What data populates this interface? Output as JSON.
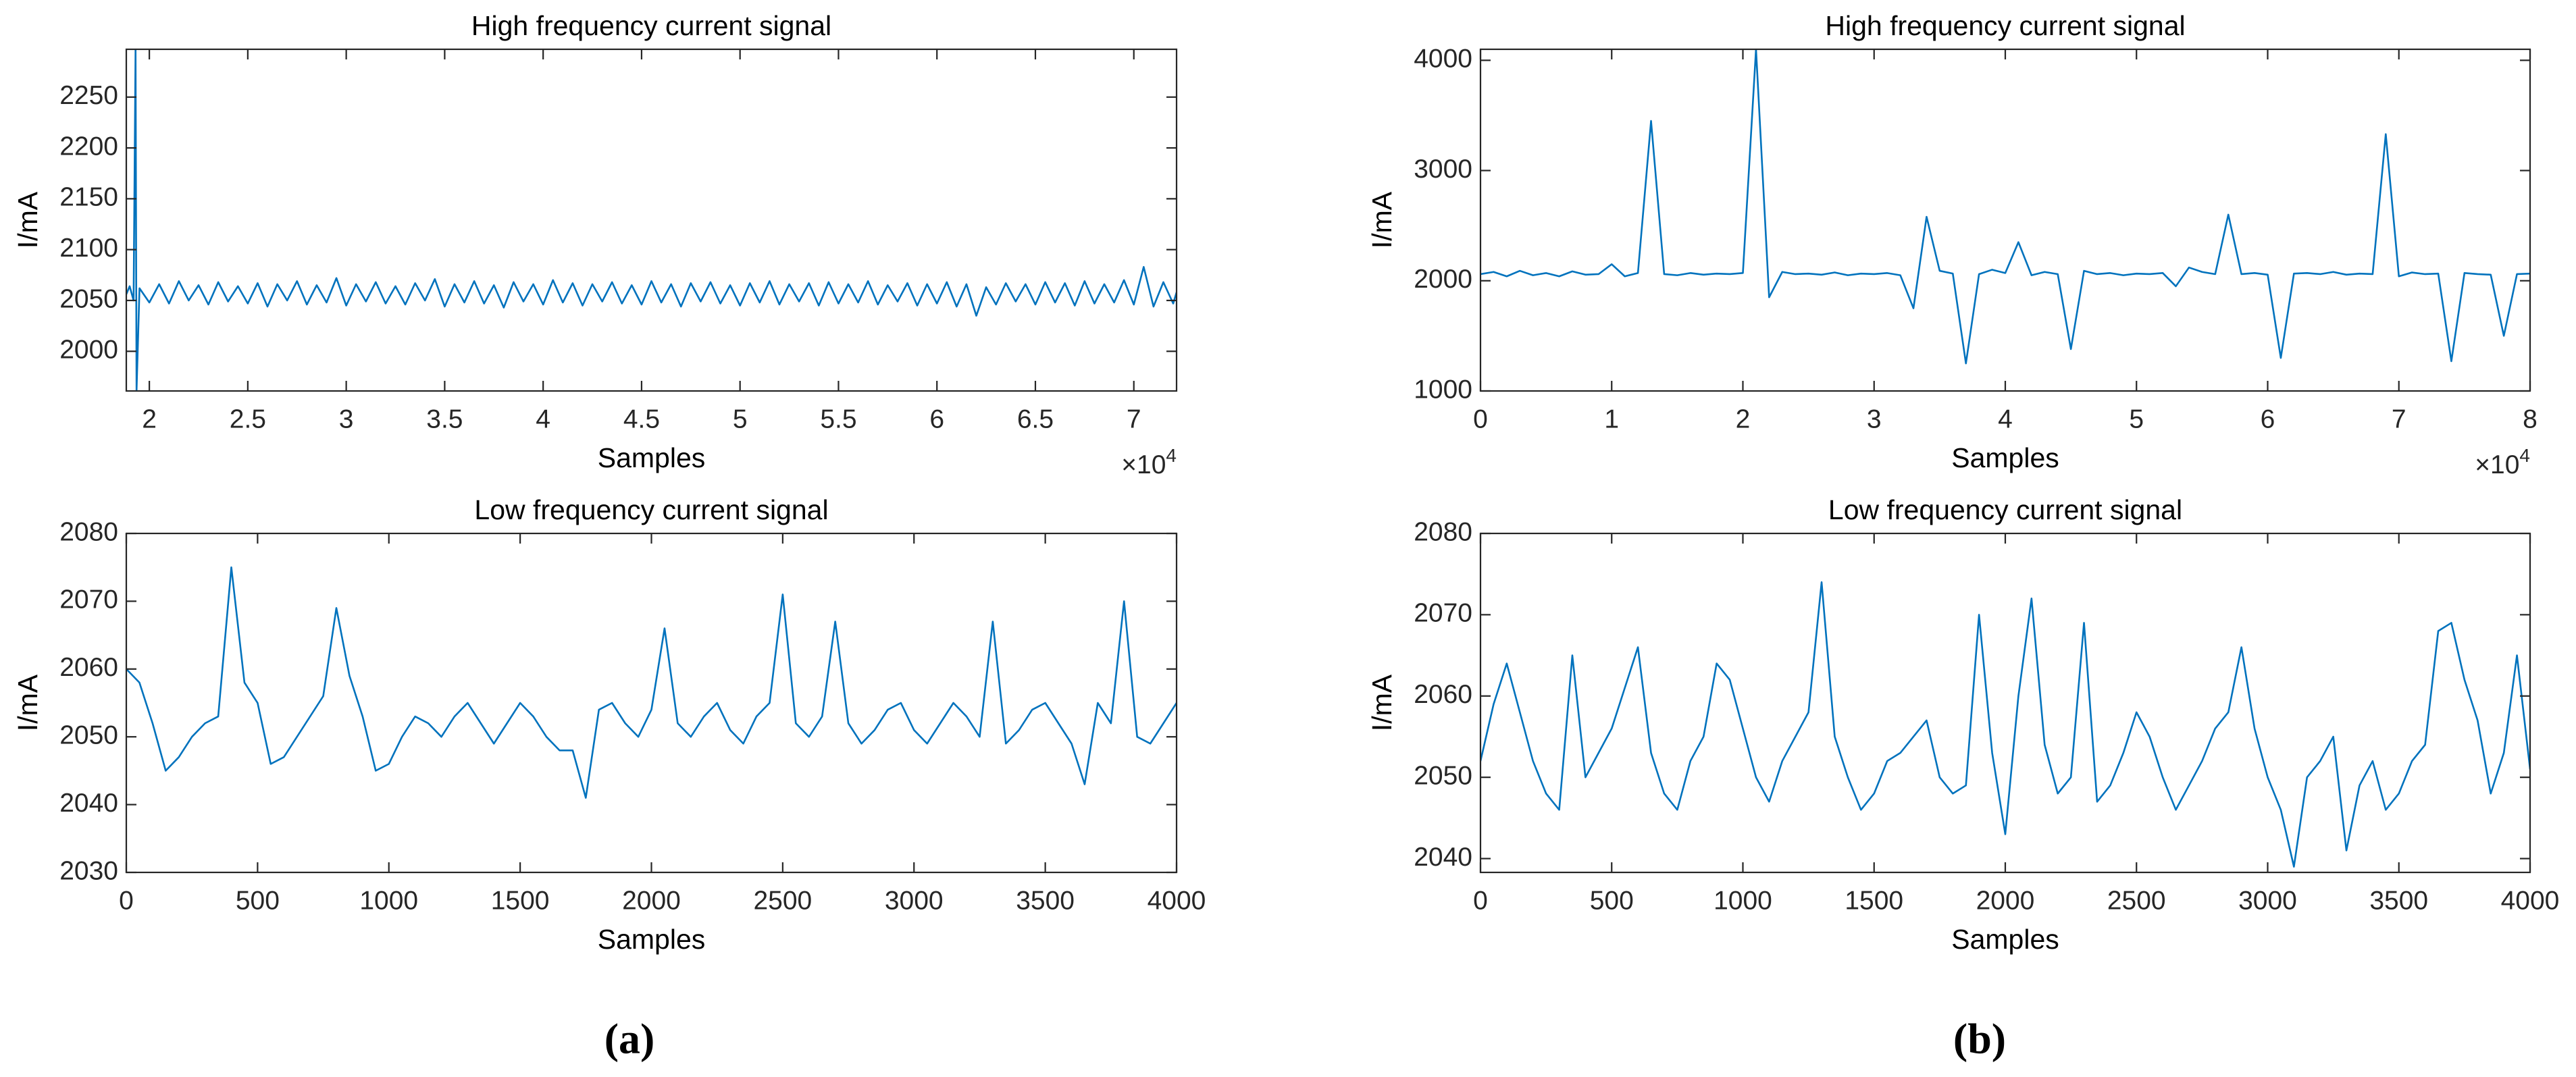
{
  "chart_data": [
    {
      "type": "line",
      "title": "High frequency current signal",
      "xlabel": "Samples",
      "ylabel": "I/mA",
      "color": "#0072bd",
      "x_exponent_label": {
        "base": "×10",
        "power": "4"
      },
      "xlim": [
        1.883,
        7.217
      ],
      "ylim": [
        1961,
        2297
      ],
      "xticks": [
        2,
        2.5,
        3,
        3.5,
        4,
        4.5,
        5,
        5.5,
        6,
        6.5,
        7
      ],
      "yticks": [
        2000,
        2050,
        2100,
        2150,
        2200,
        2250
      ],
      "x": [
        1.883,
        1.9,
        1.92,
        1.93,
        1.935,
        1.95,
        2.0,
        2.05,
        2.1,
        2.15,
        2.2,
        2.25,
        2.3,
        2.35,
        2.4,
        2.45,
        2.5,
        2.55,
        2.6,
        2.65,
        2.7,
        2.75,
        2.8,
        2.85,
        2.9,
        2.95,
        3.0,
        3.05,
        3.1,
        3.15,
        3.2,
        3.25,
        3.3,
        3.35,
        3.4,
        3.45,
        3.5,
        3.55,
        3.6,
        3.65,
        3.7,
        3.75,
        3.8,
        3.85,
        3.9,
        3.95,
        4.0,
        4.05,
        4.1,
        4.15,
        4.2,
        4.25,
        4.3,
        4.35,
        4.4,
        4.45,
        4.5,
        4.55,
        4.6,
        4.65,
        4.7,
        4.75,
        4.8,
        4.85,
        4.9,
        4.95,
        5.0,
        5.05,
        5.1,
        5.15,
        5.2,
        5.25,
        5.3,
        5.35,
        5.4,
        5.45,
        5.5,
        5.55,
        5.6,
        5.65,
        5.7,
        5.75,
        5.8,
        5.85,
        5.9,
        5.95,
        6.0,
        6.05,
        6.1,
        6.15,
        6.2,
        6.25,
        6.3,
        6.35,
        6.4,
        6.45,
        6.5,
        6.55,
        6.6,
        6.65,
        6.7,
        6.75,
        6.8,
        6.85,
        6.9,
        6.95,
        7.0,
        7.05,
        7.1,
        7.15,
        7.2,
        7.217
      ],
      "values": [
        2056,
        2064,
        2050,
        2297,
        1961,
        2062,
        2048,
        2066,
        2047,
        2069,
        2050,
        2065,
        2046,
        2068,
        2049,
        2064,
        2047,
        2067,
        2044,
        2066,
        2050,
        2069,
        2046,
        2065,
        2048,
        2072,
        2045,
        2066,
        2049,
        2068,
        2047,
        2064,
        2046,
        2067,
        2050,
        2071,
        2044,
        2066,
        2048,
        2069,
        2047,
        2065,
        2043,
        2068,
        2049,
        2066,
        2046,
        2070,
        2048,
        2067,
        2045,
        2066,
        2049,
        2068,
        2047,
        2065,
        2046,
        2069,
        2048,
        2066,
        2044,
        2067,
        2049,
        2068,
        2047,
        2065,
        2045,
        2067,
        2048,
        2069,
        2046,
        2066,
        2049,
        2067,
        2045,
        2068,
        2047,
        2066,
        2048,
        2069,
        2046,
        2065,
        2049,
        2067,
        2045,
        2066,
        2047,
        2068,
        2044,
        2066,
        2035,
        2063,
        2046,
        2067,
        2049,
        2066,
        2046,
        2068,
        2048,
        2067,
        2045,
        2069,
        2047,
        2066,
        2048,
        2070,
        2046,
        2083,
        2044,
        2068,
        2047,
        2058
      ]
    },
    {
      "type": "line",
      "title": "Low frequency current signal",
      "xlabel": "Samples",
      "ylabel": "I/mA",
      "color": "#0072bd",
      "xlim": [
        0,
        4000
      ],
      "ylim": [
        2030,
        2080
      ],
      "xticks": [
        0,
        500,
        1000,
        1500,
        2000,
        2500,
        3000,
        3500,
        4000
      ],
      "yticks": [
        2030,
        2040,
        2050,
        2060,
        2070,
        2080
      ],
      "x": [
        0,
        50,
        100,
        150,
        200,
        250,
        300,
        350,
        400,
        450,
        500,
        550,
        600,
        650,
        700,
        750,
        800,
        850,
        900,
        950,
        1000,
        1050,
        1100,
        1150,
        1200,
        1250,
        1300,
        1350,
        1400,
        1450,
        1500,
        1550,
        1600,
        1650,
        1700,
        1750,
        1800,
        1850,
        1900,
        1950,
        2000,
        2050,
        2100,
        2150,
        2200,
        2250,
        2300,
        2350,
        2400,
        2450,
        2500,
        2550,
        2600,
        2650,
        2700,
        2750,
        2800,
        2850,
        2900,
        2950,
        3000,
        3050,
        3100,
        3150,
        3200,
        3250,
        3300,
        3350,
        3400,
        3450,
        3500,
        3550,
        3600,
        3650,
        3700,
        3750,
        3800,
        3850,
        3900,
        3950,
        4000
      ],
      "values": [
        2060,
        2058,
        2052,
        2045,
        2047,
        2050,
        2052,
        2053,
        2075,
        2058,
        2055,
        2046,
        2047,
        2050,
        2053,
        2056,
        2069,
        2059,
        2053,
        2045,
        2046,
        2050,
        2053,
        2052,
        2050,
        2053,
        2055,
        2052,
        2049,
        2052,
        2055,
        2053,
        2050,
        2048,
        2048,
        2041,
        2054,
        2055,
        2052,
        2050,
        2054,
        2066,
        2052,
        2050,
        2053,
        2055,
        2051,
        2049,
        2053,
        2055,
        2071,
        2052,
        2050,
        2053,
        2067,
        2052,
        2049,
        2051,
        2054,
        2055,
        2051,
        2049,
        2052,
        2055,
        2053,
        2050,
        2067,
        2049,
        2051,
        2054,
        2055,
        2052,
        2049,
        2043,
        2055,
        2052,
        2070,
        2050,
        2049,
        2052,
        2055
      ]
    },
    {
      "type": "line",
      "title": "High frequency current signal",
      "xlabel": "Samples",
      "ylabel": "I/mA",
      "color": "#0072bd",
      "x_exponent_label": {
        "base": "×10",
        "power": "4"
      },
      "xlim": [
        0,
        8
      ],
      "ylim": [
        1000,
        4100
      ],
      "xticks": [
        0,
        1,
        2,
        3,
        4,
        5,
        6,
        7,
        8
      ],
      "yticks": [
        1000,
        2000,
        3000,
        4000
      ],
      "x": [
        0,
        0.1,
        0.2,
        0.3,
        0.4,
        0.5,
        0.6,
        0.7,
        0.8,
        0.9,
        1.0,
        1.1,
        1.2,
        1.3,
        1.4,
        1.5,
        1.6,
        1.7,
        1.8,
        1.9,
        2.0,
        2.1,
        2.2,
        2.3,
        2.4,
        2.5,
        2.6,
        2.7,
        2.8,
        2.9,
        3.0,
        3.1,
        3.2,
        3.3,
        3.4,
        3.5,
        3.6,
        3.7,
        3.8,
        3.9,
        4.0,
        4.1,
        4.2,
        4.3,
        4.4,
        4.5,
        4.6,
        4.7,
        4.8,
        4.9,
        5.0,
        5.1,
        5.2,
        5.3,
        5.4,
        5.5,
        5.6,
        5.7,
        5.8,
        5.9,
        6.0,
        6.1,
        6.2,
        6.3,
        6.4,
        6.5,
        6.6,
        6.7,
        6.8,
        6.9,
        7.0,
        7.1,
        7.2,
        7.3,
        7.4,
        7.5,
        7.6,
        7.7,
        7.8,
        7.9,
        8.0
      ],
      "values": [
        2060,
        2080,
        2040,
        2090,
        2050,
        2070,
        2040,
        2085,
        2055,
        2060,
        2150,
        2040,
        2070,
        3450,
        2060,
        2050,
        2070,
        2055,
        2065,
        2060,
        2070,
        4100,
        1850,
        2080,
        2060,
        2065,
        2055,
        2075,
        2050,
        2065,
        2060,
        2070,
        2050,
        1750,
        2580,
        2090,
        2065,
        1250,
        2060,
        2100,
        2070,
        2350,
        2050,
        2080,
        2060,
        1380,
        2090,
        2060,
        2070,
        2050,
        2065,
        2060,
        2070,
        1950,
        2120,
        2080,
        2060,
        2600,
        2060,
        2070,
        2055,
        1300,
        2065,
        2070,
        2060,
        2080,
        2055,
        2065,
        2060,
        3330,
        2040,
        2075,
        2060,
        2065,
        1270,
        2070,
        2060,
        2055,
        1500,
        2060,
        2065
      ]
    },
    {
      "type": "line",
      "title": "Low frequency current signal",
      "xlabel": "Samples",
      "ylabel": "I/mA",
      "color": "#0072bd",
      "xlim": [
        0,
        4000
      ],
      "ylim": [
        2038.3,
        2080
      ],
      "xticks": [
        0,
        500,
        1000,
        1500,
        2000,
        2500,
        3000,
        3500,
        4000
      ],
      "yticks": [
        2040,
        2050,
        2060,
        2070,
        2080
      ],
      "x": [
        0,
        50,
        100,
        150,
        200,
        250,
        300,
        350,
        400,
        450,
        500,
        550,
        600,
        650,
        700,
        750,
        800,
        850,
        900,
        950,
        1000,
        1050,
        1100,
        1150,
        1200,
        1250,
        1300,
        1350,
        1400,
        1450,
        1500,
        1550,
        1600,
        1650,
        1700,
        1750,
        1800,
        1850,
        1900,
        1950,
        2000,
        2050,
        2100,
        2150,
        2200,
        2250,
        2300,
        2350,
        2400,
        2450,
        2500,
        2550,
        2600,
        2650,
        2700,
        2750,
        2800,
        2850,
        2900,
        2950,
        3000,
        3050,
        3100,
        3150,
        3200,
        3250,
        3300,
        3350,
        3400,
        3450,
        3500,
        3550,
        3600,
        3650,
        3700,
        3750,
        3800,
        3850,
        3900,
        3950,
        4000
      ],
      "values": [
        2052,
        2059,
        2064,
        2058,
        2052,
        2048,
        2046,
        2065,
        2050,
        2053,
        2056,
        2061,
        2066,
        2053,
        2048,
        2046,
        2052,
        2055,
        2064,
        2062,
        2056,
        2050,
        2047,
        2052,
        2055,
        2058,
        2074,
        2055,
        2050,
        2046,
        2048,
        2052,
        2053,
        2055,
        2057,
        2050,
        2048,
        2049,
        2070,
        2053,
        2043,
        2060,
        2072,
        2054,
        2048,
        2050,
        2069,
        2047,
        2049,
        2053,
        2058,
        2055,
        2050,
        2046,
        2049,
        2052,
        2056,
        2058,
        2066,
        2056,
        2050,
        2046,
        2039,
        2050,
        2052,
        2055,
        2041,
        2049,
        2052,
        2046,
        2048,
        2052,
        2054,
        2068,
        2069,
        2062,
        2057,
        2048,
        2053,
        2065,
        2051
      ]
    }
  ],
  "captions": [
    "(a)",
    "(b)"
  ]
}
